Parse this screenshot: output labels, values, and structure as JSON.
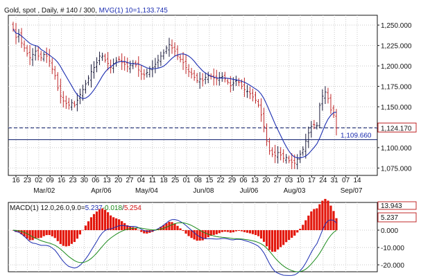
{
  "colors": {
    "up_bar": "#1a1a3a",
    "down_bar": "#c0282a",
    "ma_line": "#1b2db0",
    "macd_line": "#1b2db0",
    "signal_line": "#1a8a1a",
    "hist_bar": "#e3160b",
    "panel_border": "#111111",
    "grid": "#c9c9c9",
    "ref_line": "#10206e"
  },
  "chart_data": [
    {
      "type": "ohlc",
      "title": "Gold, spot , Daily, # 140 / 300,",
      "indicator_label": "MVG(1) 10=1,133.745",
      "ylim": [
        1066,
        1262
      ],
      "yticks": [
        1250,
        1225,
        1200,
        1175,
        1150,
        1125,
        1100,
        1075
      ],
      "ytick_labels": [
        "1,250.000",
        "1,225.000",
        "1,200.000",
        "1,175.000",
        "1,150.000",
        "1,125.000",
        "1,100.000",
        "1,075.000"
      ],
      "x_day_labels": [
        "16",
        "23",
        "02",
        "09",
        "16",
        "23",
        "30",
        "06",
        "13",
        "20",
        "27",
        "04",
        "11",
        "18",
        "25",
        "01",
        "08",
        "15",
        "22",
        "29",
        "06",
        "13",
        "20",
        "27",
        "03",
        "10",
        "17",
        "24",
        "31",
        "07",
        "14"
      ],
      "x_month_labels": [
        {
          "label": "Mar/02",
          "at_day_index": 2
        },
        {
          "label": "Apr/06",
          "at_day_index": 7
        },
        {
          "label": "May/04",
          "at_day_index": 11
        },
        {
          "label": "Jun/08",
          "at_day_index": 16
        },
        {
          "label": "Jul/06",
          "at_day_index": 20
        },
        {
          "label": "Aug/03",
          "at_day_index": 24
        },
        {
          "label": "Sep/07",
          "at_day_index": 29
        }
      ],
      "current_price": 1124.17,
      "current_price_label": "1,124.170",
      "ref_level": 1109.66,
      "ref_level_label": "1,109.660",
      "grid": true,
      "closes": [
        1245,
        1235,
        1238,
        1228,
        1222,
        1215,
        1210,
        1214,
        1218,
        1212,
        1210,
        1214,
        1212,
        1206,
        1196,
        1188,
        1173,
        1163,
        1157,
        1154,
        1152,
        1155,
        1152,
        1158,
        1165,
        1171,
        1178,
        1185,
        1193,
        1198,
        1204,
        1212,
        1212,
        1207,
        1203,
        1198,
        1203,
        1206,
        1208,
        1204,
        1202,
        1199,
        1201,
        1203,
        1201,
        1195,
        1190,
        1189,
        1192,
        1196,
        1198,
        1202,
        1207,
        1212,
        1216,
        1222,
        1226,
        1222,
        1218,
        1212,
        1208,
        1204,
        1198,
        1193,
        1190,
        1186,
        1182,
        1184,
        1182,
        1186,
        1188,
        1187,
        1185,
        1184,
        1186,
        1187,
        1184,
        1180,
        1176,
        1179,
        1182,
        1180,
        1175,
        1171,
        1169,
        1166,
        1162,
        1158,
        1152,
        1140,
        1126,
        1108,
        1096,
        1092,
        1090,
        1094,
        1091,
        1087,
        1088,
        1084,
        1082,
        1081,
        1086,
        1092,
        1098,
        1108,
        1118,
        1126,
        1128,
        1127,
        1152,
        1163,
        1168,
        1160,
        1146,
        1140,
        1124
      ]
    },
    {
      "type": "macd",
      "label": "MACD(1) 12.0,26.0,9.0=",
      "macd_value": "5.237",
      "signal_value": "-0.018",
      "hist_value": "5.254",
      "ylim": [
        -24,
        16
      ],
      "yticks": [
        0,
        -10,
        -20
      ],
      "ytick_labels": [
        "0.000",
        "-10.000",
        "-20.000"
      ],
      "top_label": "13.943",
      "current_label": "5.237"
    }
  ]
}
